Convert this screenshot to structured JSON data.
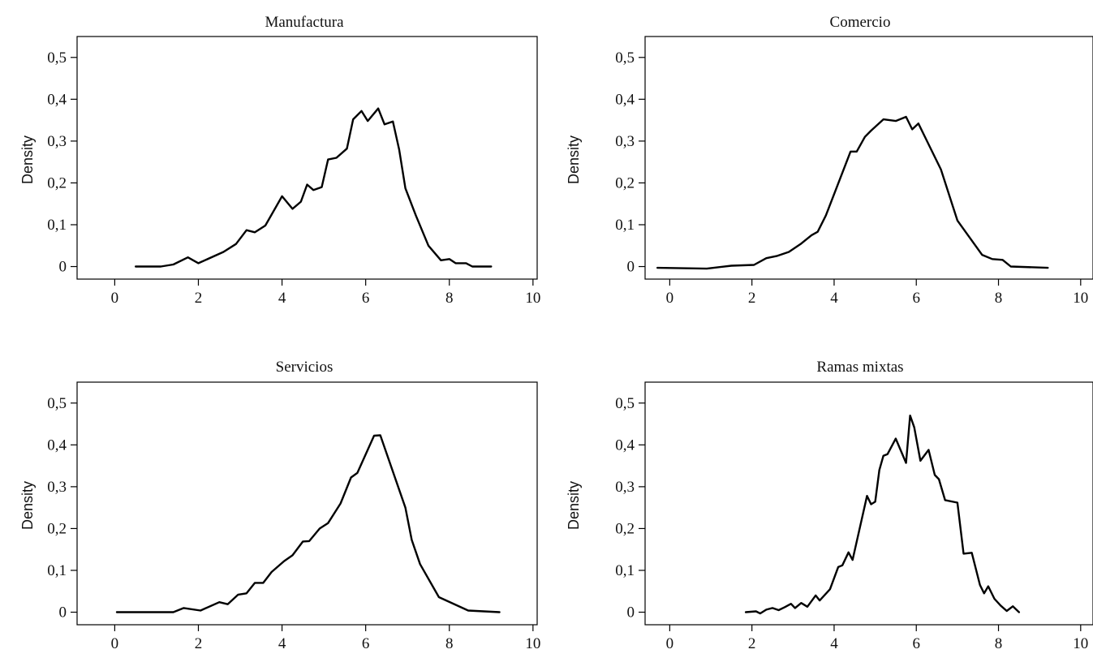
{
  "chart_data": [
    {
      "type": "line",
      "title": "Manufactura",
      "ylabel": "Density",
      "xlabel": "",
      "xlim": [
        -0.9,
        10.1
      ],
      "ylim": [
        -0.03,
        0.55
      ],
      "xticks": [
        0,
        2,
        4,
        6,
        8,
        10
      ],
      "xtick_labels": [
        "0",
        "2",
        "4",
        "6",
        "8",
        "10"
      ],
      "yticks": [
        0,
        0.1,
        0.2,
        0.3,
        0.4,
        0.5
      ],
      "ytick_labels": [
        "0",
        "0,1",
        "0,2",
        "0,3",
        "0,4",
        "0,5"
      ],
      "grid": false,
      "series": [
        {
          "x": [
            0.5,
            1.1,
            1.4,
            1.75,
            2.0,
            2.6,
            2.9,
            3.15,
            3.35,
            3.6,
            4.0,
            4.25,
            4.45,
            4.6,
            4.75,
            4.95,
            5.1,
            5.3,
            5.55,
            5.7,
            5.9,
            6.05,
            6.3,
            6.45,
            6.65,
            6.8,
            6.95,
            7.2,
            7.5,
            7.8,
            8.0,
            8.15,
            8.4,
            8.55,
            9.0
          ],
          "y": [
            0.0,
            0.0,
            0.005,
            0.022,
            0.008,
            0.035,
            0.054,
            0.087,
            0.082,
            0.098,
            0.168,
            0.138,
            0.155,
            0.196,
            0.183,
            0.19,
            0.256,
            0.26,
            0.282,
            0.352,
            0.372,
            0.348,
            0.378,
            0.34,
            0.347,
            0.28,
            0.187,
            0.122,
            0.05,
            0.015,
            0.018,
            0.008,
            0.008,
            0.0,
            0.0
          ]
        }
      ]
    },
    {
      "type": "line",
      "title": "Comercio",
      "ylabel": "Density",
      "xlabel": "",
      "xlim": [
        -0.6,
        10.3
      ],
      "ylim": [
        -0.03,
        0.55
      ],
      "xticks": [
        0,
        2,
        4,
        6,
        8,
        10
      ],
      "xtick_labels": [
        "0",
        "2",
        "4",
        "6",
        "8",
        "10"
      ],
      "yticks": [
        0,
        0.1,
        0.2,
        0.3,
        0.4,
        0.5
      ],
      "ytick_labels": [
        "0",
        "0,1",
        "0,2",
        "0,3",
        "0,4",
        "0,5"
      ],
      "grid": false,
      "series": [
        {
          "x": [
            -0.3,
            0.9,
            1.5,
            2.05,
            2.35,
            2.6,
            2.9,
            3.2,
            3.45,
            3.6,
            3.8,
            4.4,
            4.55,
            4.75,
            4.9,
            5.2,
            5.5,
            5.75,
            5.9,
            6.05,
            6.6,
            7.0,
            7.6,
            7.85,
            8.1,
            8.3,
            9.2
          ],
          "y": [
            -0.003,
            -0.005,
            0.002,
            0.004,
            0.02,
            0.025,
            0.035,
            0.055,
            0.075,
            0.083,
            0.122,
            0.275,
            0.275,
            0.31,
            0.325,
            0.352,
            0.348,
            0.358,
            0.328,
            0.342,
            0.232,
            0.11,
            0.028,
            0.018,
            0.016,
            0.0,
            -0.003
          ]
        }
      ]
    },
    {
      "type": "line",
      "title": "Servicios",
      "ylabel": "Density",
      "xlabel": "",
      "xlim": [
        -0.9,
        10.1
      ],
      "ylim": [
        -0.03,
        0.55
      ],
      "xticks": [
        0,
        2,
        4,
        6,
        8,
        10
      ],
      "xtick_labels": [
        "0",
        "2",
        "4",
        "6",
        "8",
        "10"
      ],
      "yticks": [
        0,
        0.1,
        0.2,
        0.3,
        0.4,
        0.5
      ],
      "ytick_labels": [
        "0",
        "0,1",
        "0,2",
        "0,3",
        "0,4",
        "0,5"
      ],
      "grid": false,
      "series": [
        {
          "x": [
            0.05,
            0.6,
            1.4,
            1.65,
            2.05,
            2.5,
            2.7,
            2.95,
            3.15,
            3.35,
            3.55,
            3.75,
            4.05,
            4.25,
            4.5,
            4.65,
            4.9,
            5.1,
            5.4,
            5.65,
            5.8,
            6.2,
            6.35,
            6.95,
            7.1,
            7.3,
            7.75,
            8.45,
            9.2
          ],
          "y": [
            0.0,
            0.0,
            0.0,
            0.01,
            0.004,
            0.024,
            0.019,
            0.042,
            0.045,
            0.07,
            0.07,
            0.096,
            0.122,
            0.136,
            0.169,
            0.17,
            0.2,
            0.213,
            0.26,
            0.322,
            0.333,
            0.422,
            0.423,
            0.25,
            0.173,
            0.115,
            0.036,
            0.004,
            0.0
          ]
        }
      ]
    },
    {
      "type": "line",
      "title": "Ramas mixtas",
      "ylabel": "Density",
      "xlabel": "",
      "xlim": [
        -0.6,
        10.3
      ],
      "ylim": [
        -0.03,
        0.55
      ],
      "xticks": [
        0,
        2,
        4,
        6,
        8,
        10
      ],
      "xtick_labels": [
        "0",
        "2",
        "4",
        "6",
        "8",
        "10"
      ],
      "yticks": [
        0,
        0.1,
        0.2,
        0.3,
        0.4,
        0.5
      ],
      "ytick_labels": [
        "0",
        "0,1",
        "0,2",
        "0,3",
        "0,4",
        "0,5"
      ],
      "grid": false,
      "series": [
        {
          "x": [
            1.85,
            2.1,
            2.2,
            2.35,
            2.5,
            2.65,
            2.8,
            2.95,
            3.05,
            3.2,
            3.35,
            3.55,
            3.65,
            3.9,
            4.1,
            4.2,
            4.35,
            4.45,
            4.8,
            4.9,
            5.0,
            5.1,
            5.2,
            5.3,
            5.5,
            5.75,
            5.85,
            5.95,
            6.1,
            6.3,
            6.45,
            6.55,
            6.7,
            7.0,
            7.15,
            7.35,
            7.55,
            7.65,
            7.75,
            7.9,
            8.05,
            8.2,
            8.35,
            8.5
          ],
          "y": [
            0.0,
            0.002,
            -0.003,
            0.006,
            0.01,
            0.005,
            0.012,
            0.02,
            0.01,
            0.022,
            0.013,
            0.04,
            0.028,
            0.055,
            0.108,
            0.112,
            0.143,
            0.125,
            0.278,
            0.258,
            0.264,
            0.34,
            0.374,
            0.378,
            0.415,
            0.357,
            0.47,
            0.442,
            0.362,
            0.388,
            0.328,
            0.318,
            0.268,
            0.262,
            0.14,
            0.142,
            0.065,
            0.045,
            0.062,
            0.032,
            0.016,
            0.003,
            0.014,
            0.0
          ]
        }
      ]
    }
  ]
}
